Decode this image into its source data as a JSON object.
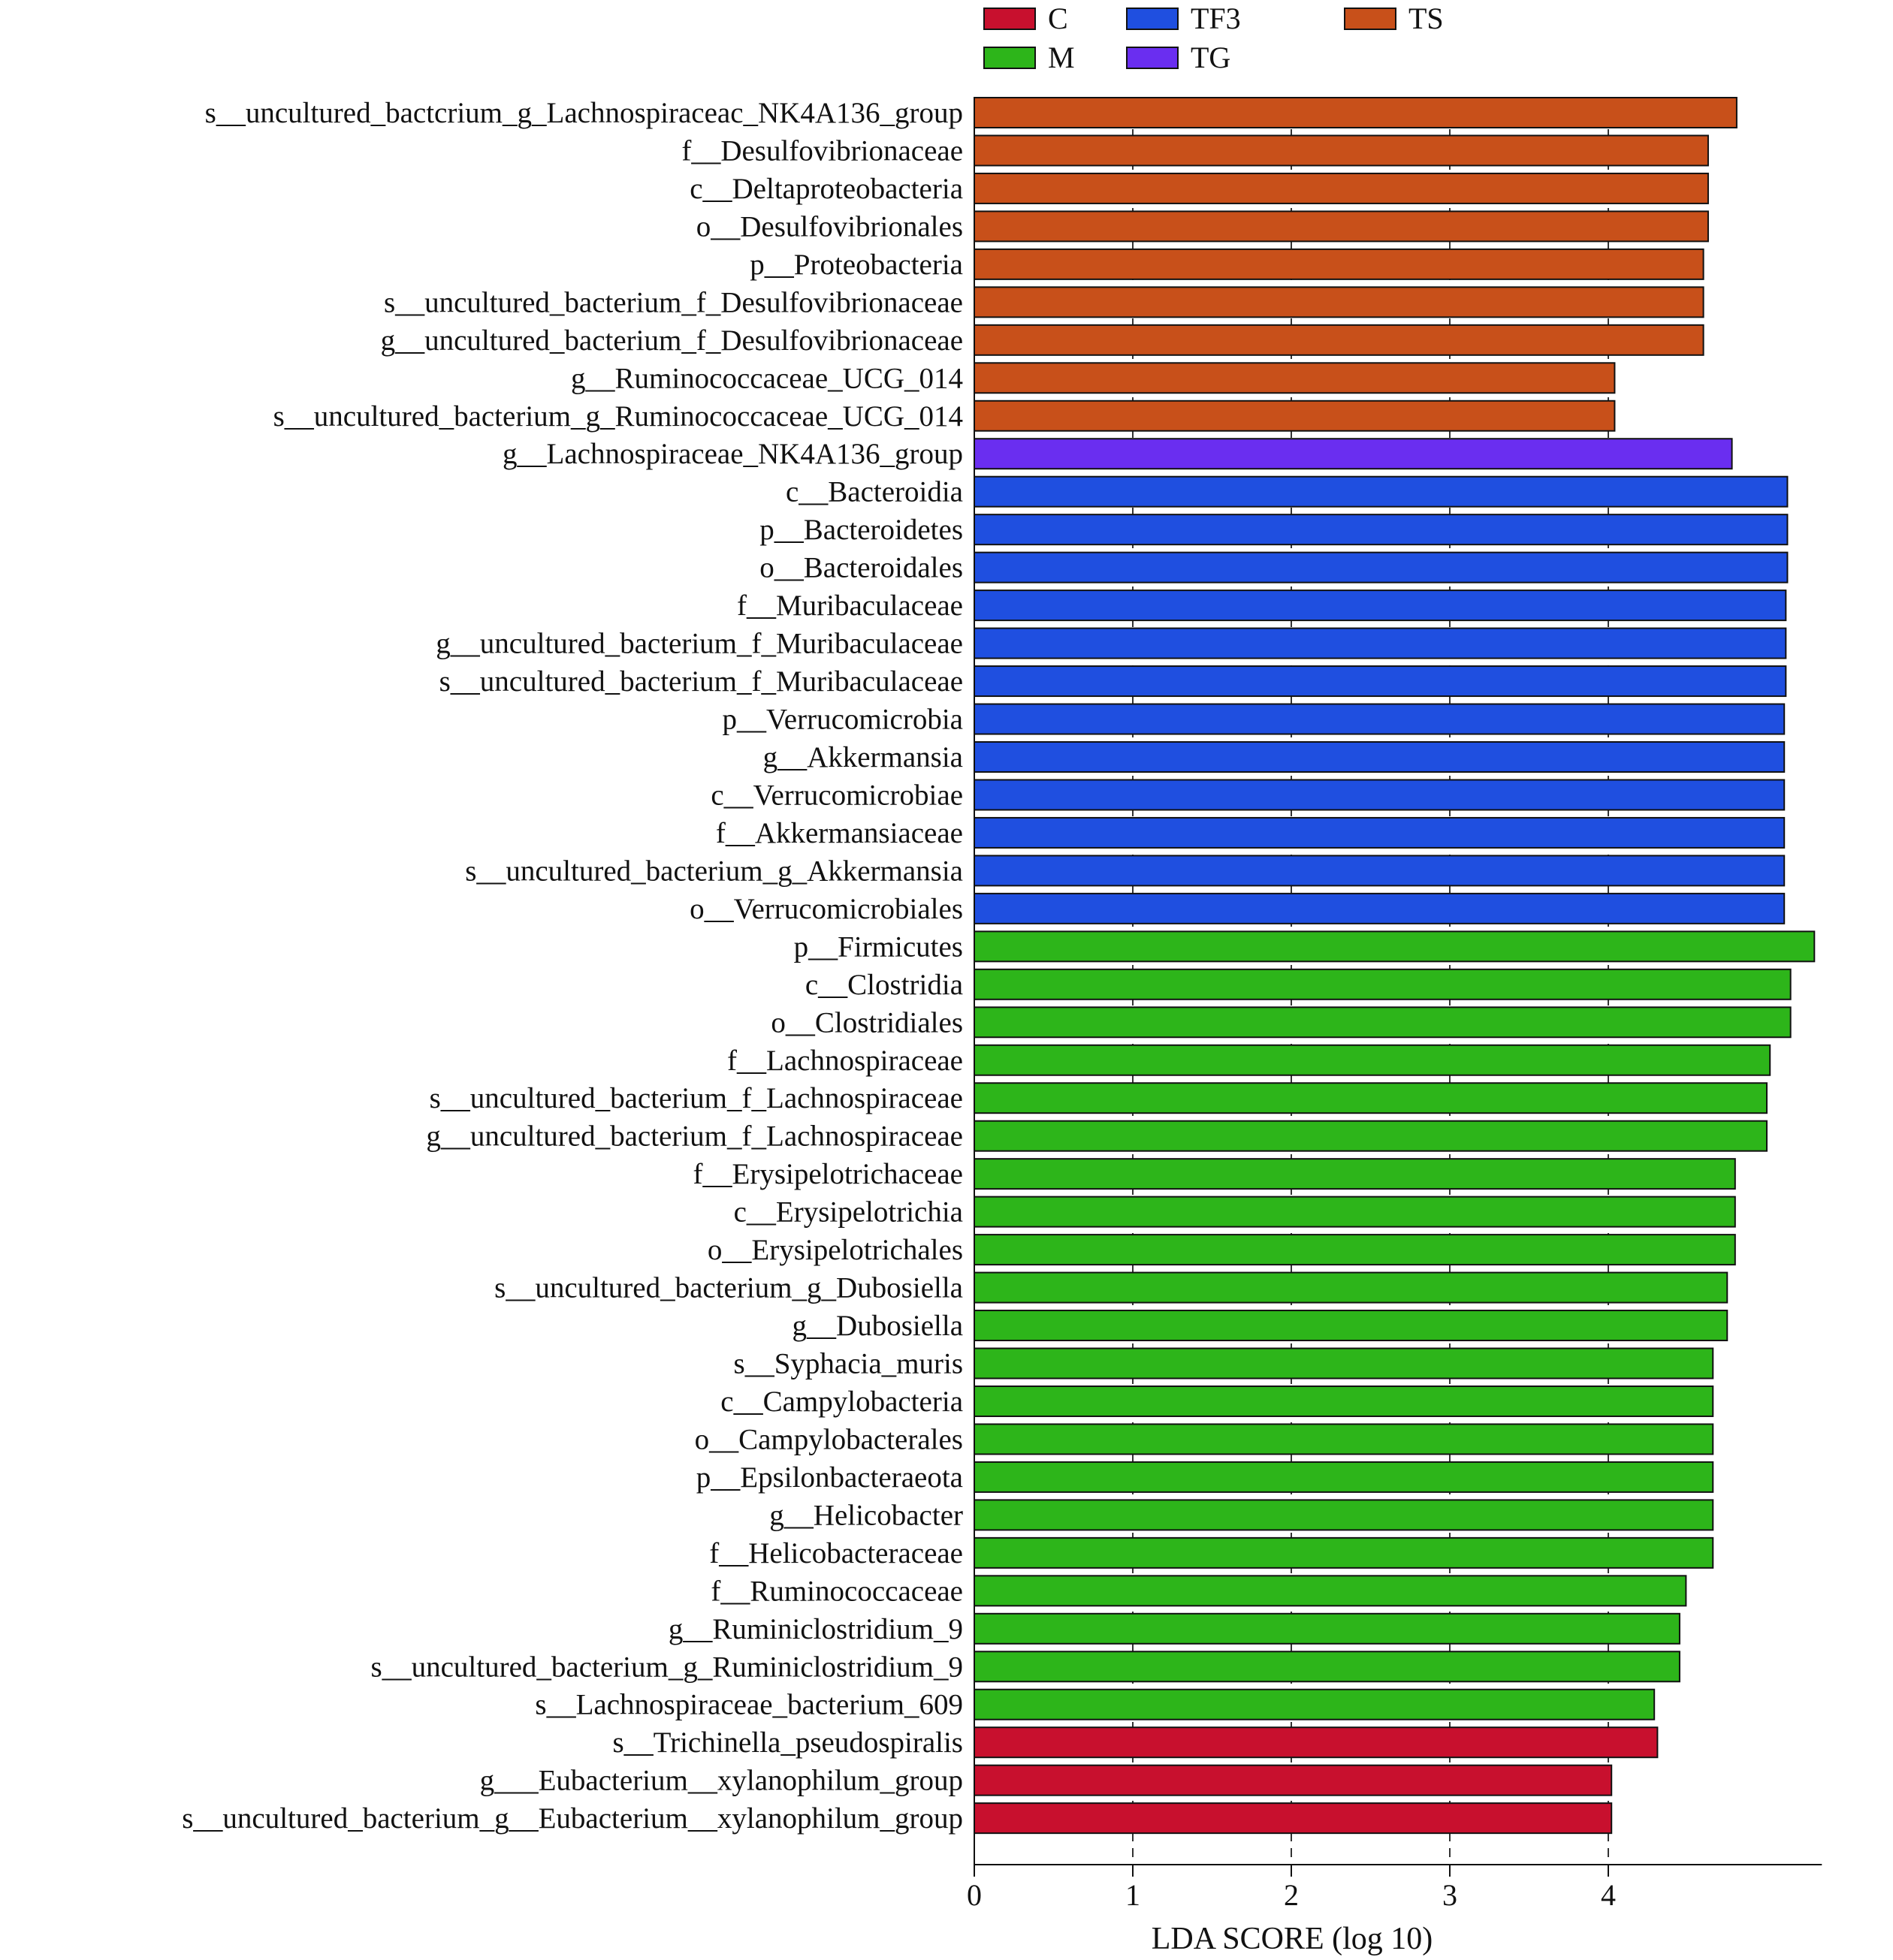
{
  "chart_data": {
    "type": "bar",
    "orientation": "horizontal",
    "xlabel": "LDA SCORE (log 10)",
    "xlim": [
      0,
      5.3
    ],
    "xticks": [
      0,
      1,
      2,
      3,
      4
    ],
    "grid": "vertical dashed at ticks",
    "legend": {
      "placement": "top",
      "entries": [
        {
          "name": "C",
          "color": "#C8102E"
        },
        {
          "name": "TF3",
          "color": "#1F4FE0"
        },
        {
          "name": "TS",
          "color": "#C8501A"
        },
        {
          "name": "M",
          "color": "#2DB51A"
        },
        {
          "name": "TG",
          "color": "#6A2EF0"
        }
      ]
    },
    "bars": [
      {
        "label": "s__uncultured_bactcrium_g_Lachnospiraceac_NK4A136_group",
        "value": 4.81,
        "group": "TS"
      },
      {
        "label": "f__Desulfovibrionaceae",
        "value": 4.63,
        "group": "TS"
      },
      {
        "label": "c__Deltaproteobacteria",
        "value": 4.63,
        "group": "TS"
      },
      {
        "label": "o__Desulfovibrionales",
        "value": 4.63,
        "group": "TS"
      },
      {
        "label": "p__Proteobacteria",
        "value": 4.6,
        "group": "TS"
      },
      {
        "label": "s__uncultured_bacterium_f_Desulfovibrionaceae",
        "value": 4.6,
        "group": "TS"
      },
      {
        "label": "g__uncultured_bacterium_f_Desulfovibrionaceae",
        "value": 4.6,
        "group": "TS"
      },
      {
        "label": "g__Ruminococcaceae_UCG_014",
        "value": 4.04,
        "group": "TS"
      },
      {
        "label": "s__uncultured_bacterium_g_Ruminococcaceae_UCG_014",
        "value": 4.04,
        "group": "TS"
      },
      {
        "label": "g__Lachnospiraceae_NK4A136_group",
        "value": 4.78,
        "group": "TG"
      },
      {
        "label": "c__Bacteroidia",
        "value": 5.13,
        "group": "TF3"
      },
      {
        "label": "p__Bacteroidetes",
        "value": 5.13,
        "group": "TF3"
      },
      {
        "label": "o__Bacteroidales",
        "value": 5.13,
        "group": "TF3"
      },
      {
        "label": "f__Muribaculaceae",
        "value": 5.12,
        "group": "TF3"
      },
      {
        "label": "g__uncultured_bacterium_f_Muribaculaceae",
        "value": 5.12,
        "group": "TF3"
      },
      {
        "label": "s__uncultured_bacterium_f_Muribaculaceae",
        "value": 5.12,
        "group": "TF3"
      },
      {
        "label": "p__Verrucomicrobia",
        "value": 5.11,
        "group": "TF3"
      },
      {
        "label": "g__Akkermansia",
        "value": 5.11,
        "group": "TF3"
      },
      {
        "label": "c__Verrucomicrobiae",
        "value": 5.11,
        "group": "TF3"
      },
      {
        "label": "f__Akkermansiaceae",
        "value": 5.11,
        "group": "TF3"
      },
      {
        "label": "s__uncultured_bacterium_g_Akkermansia",
        "value": 5.11,
        "group": "TF3"
      },
      {
        "label": "o__Verrucomicrobiales",
        "value": 5.11,
        "group": "TF3"
      },
      {
        "label": "p__Firmicutes",
        "value": 5.3,
        "group": "M"
      },
      {
        "label": "c__Clostridia",
        "value": 5.15,
        "group": "M"
      },
      {
        "label": "o__Clostridiales",
        "value": 5.15,
        "group": "M"
      },
      {
        "label": "f__Lachnospiraceae",
        "value": 5.02,
        "group": "M"
      },
      {
        "label": "s__uncultured_bacterium_f_Lachnospiraceae",
        "value": 5.0,
        "group": "M"
      },
      {
        "label": "g__uncultured_bacterium_f_Lachnospiraceae",
        "value": 5.0,
        "group": "M"
      },
      {
        "label": "f__Erysipelotrichaceae",
        "value": 4.8,
        "group": "M"
      },
      {
        "label": "c__Erysipelotrichia",
        "value": 4.8,
        "group": "M"
      },
      {
        "label": "o__Erysipelotrichales",
        "value": 4.8,
        "group": "M"
      },
      {
        "label": "s__uncultured_bacterium_g_Dubosiella",
        "value": 4.75,
        "group": "M"
      },
      {
        "label": "g__Dubosiella",
        "value": 4.75,
        "group": "M"
      },
      {
        "label": "s__Syphacia_muris",
        "value": 4.66,
        "group": "M"
      },
      {
        "label": "c__Campylobacteria",
        "value": 4.66,
        "group": "M"
      },
      {
        "label": "o__Campylobacterales",
        "value": 4.66,
        "group": "M"
      },
      {
        "label": "p__Epsilonbacteraeota",
        "value": 4.66,
        "group": "M"
      },
      {
        "label": "g__Helicobacter",
        "value": 4.66,
        "group": "M"
      },
      {
        "label": "f__Helicobacteraceae",
        "value": 4.66,
        "group": "M"
      },
      {
        "label": "f__Ruminococcaceae",
        "value": 4.49,
        "group": "M"
      },
      {
        "label": "g__Ruminiclostridium_9",
        "value": 4.45,
        "group": "M"
      },
      {
        "label": "s__uncultured_bacterium_g_Ruminiclostridium_9",
        "value": 4.45,
        "group": "M"
      },
      {
        "label": "s__Lachnospiraceae_bacterium_609",
        "value": 4.29,
        "group": "M"
      },
      {
        "label": "s__Trichinella_pseudospiralis",
        "value": 4.31,
        "group": "C"
      },
      {
        "label": "g___Eubacterium__xylanophilum_group",
        "value": 4.02,
        "group": "C"
      },
      {
        "label": "s__uncultured_bacterium_g__Eubacterium__xylanophilum_group",
        "value": 4.02,
        "group": "C"
      }
    ]
  }
}
